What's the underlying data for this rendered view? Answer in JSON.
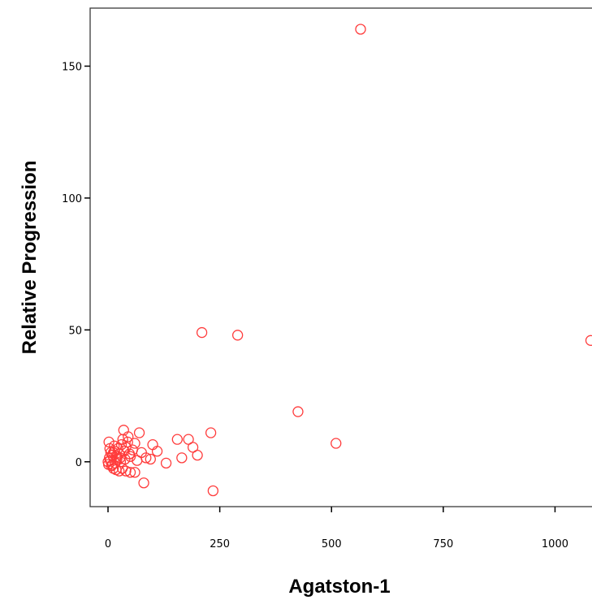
{
  "chart_data": {
    "type": "scatter",
    "xlabel": "Agatston-1",
    "ylabel": "Relative Progression",
    "xlim": [
      -40,
      1090
    ],
    "ylim": [
      -17,
      172
    ],
    "x_ticks": [
      0,
      250,
      500,
      750,
      1000
    ],
    "y_ticks": [
      0,
      50,
      100,
      150
    ],
    "grid": false,
    "legend": "none",
    "marker": "open-circle",
    "marker_color": "#ff3b3b",
    "series": [
      {
        "points": [
          [
            565,
            164
          ],
          [
            210,
            49
          ],
          [
            290,
            48
          ],
          [
            1080,
            46
          ],
          [
            425,
            19
          ],
          [
            510,
            7
          ],
          [
            230,
            11
          ],
          [
            235,
            -11
          ],
          [
            80,
            -8
          ],
          [
            155,
            8.5
          ],
          [
            180,
            8.5
          ],
          [
            190,
            5.5
          ],
          [
            200,
            2.5
          ],
          [
            165,
            1.5
          ],
          [
            130,
            -0.5
          ],
          [
            110,
            4
          ],
          [
            100,
            6.5
          ],
          [
            95,
            1
          ],
          [
            70,
            11
          ],
          [
            35,
            12
          ],
          [
            45,
            9.5
          ],
          [
            60,
            7
          ],
          [
            75,
            3.5
          ],
          [
            55,
            4.5
          ],
          [
            50,
            2
          ],
          [
            40,
            5.5
          ],
          [
            30,
            6.5
          ],
          [
            25,
            3
          ],
          [
            20,
            1
          ],
          [
            15,
            4
          ],
          [
            10,
            2.5
          ],
          [
            5,
            0.5
          ],
          [
            0,
            0
          ],
          [
            2,
            7.5
          ],
          [
            8,
            -1.5
          ],
          [
            12,
            -2.5
          ],
          [
            18,
            -3
          ],
          [
            25,
            -3.5
          ],
          [
            32,
            -2.5
          ],
          [
            40,
            -3.5
          ],
          [
            50,
            -4
          ],
          [
            60,
            -4
          ],
          [
            85,
            1.5
          ],
          [
            65,
            0.5
          ],
          [
            38,
            1
          ],
          [
            28,
            0
          ],
          [
            22,
            5
          ],
          [
            14,
            6
          ],
          [
            6,
            3.5
          ],
          [
            3,
            1.5
          ],
          [
            1,
            -1
          ],
          [
            16,
            -0.5
          ],
          [
            44,
            7.5
          ],
          [
            33,
            8.5
          ],
          [
            48,
            3
          ],
          [
            20,
            2
          ],
          [
            10,
            -1
          ],
          [
            27,
            1.5
          ],
          [
            36,
            4
          ],
          [
            12,
            3.5
          ],
          [
            4,
            5
          ]
        ]
      }
    ]
  }
}
